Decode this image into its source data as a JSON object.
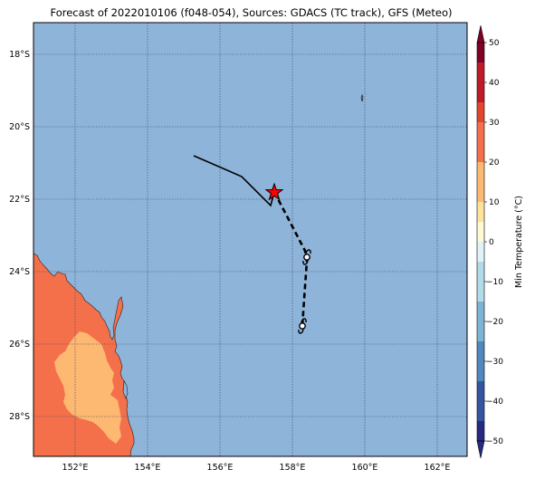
{
  "title": "Forecast of 2022010106 (f048-054), Sources: GDACS (TC track), GFS (Meteo)",
  "map": {
    "lat_labels": [
      "18°S",
      "20°S",
      "22°S",
      "24°S",
      "26°S",
      "28°S"
    ],
    "lon_labels": [
      "152°E",
      "154°E",
      "156°E",
      "158°E",
      "160°E",
      "162°E"
    ],
    "colors": {
      "ocean": "#8fb4d9",
      "land_warm": "#f4704b",
      "land_mild": "#fdb872",
      "track": "#000000",
      "current_position_star": "#ff0000",
      "grid": "#3a4a6a"
    },
    "track_past": {
      "style": "solid"
    },
    "track_forecast": {
      "style": "dashed"
    },
    "markers": [
      "current-position-star",
      "cyclone-symbol",
      "cyclone-symbol"
    ]
  },
  "colorbar": {
    "label": "Min Temperature (°C)",
    "ticks": [
      "50",
      "40",
      "30",
      "20",
      "10",
      "0",
      "−10",
      "−20",
      "−30",
      "−40",
      "−50"
    ],
    "colors": [
      "#7f0126",
      "#be1a27",
      "#e3452f",
      "#f4704b",
      "#fdb872",
      "#fee39a",
      "#fefad3",
      "#e0f3f8",
      "#b2dbe9",
      "#7eb3d4",
      "#5188bd",
      "#3555a3",
      "#262a83"
    ]
  }
}
